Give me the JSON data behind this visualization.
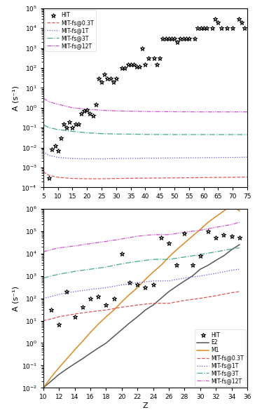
{
  "top_panel": {
    "ylabel": "A (s⁻¹)",
    "xlim": [
      5,
      75
    ],
    "ylim_log": [
      -4,
      5
    ],
    "xticks": [
      5,
      10,
      15,
      20,
      25,
      30,
      35,
      40,
      45,
      50,
      55,
      60,
      65,
      70,
      75
    ],
    "HIT_x": [
      7,
      8,
      9,
      10,
      11,
      12,
      13,
      14,
      15,
      16,
      17,
      18,
      19,
      20,
      21,
      22,
      23,
      24,
      25,
      26,
      27,
      28,
      29,
      30,
      32,
      33,
      34,
      35,
      36,
      37,
      38,
      39,
      40,
      41,
      43,
      44,
      45,
      46,
      47,
      48,
      49,
      50,
      51,
      52,
      53,
      54,
      55,
      57,
      58,
      59,
      60,
      61,
      63,
      64,
      65,
      66,
      68,
      70,
      72,
      73,
      74
    ],
    "HIT_y": [
      0.0003,
      0.008,
      0.012,
      0.007,
      0.03,
      0.15,
      0.1,
      0.2,
      0.1,
      0.15,
      0.15,
      0.5,
      0.7,
      0.8,
      0.5,
      0.4,
      1.5,
      30.0,
      20.0,
      50.0,
      30.0,
      30.0,
      20.0,
      30.0,
      100.0,
      100.0,
      150.0,
      150.0,
      150.0,
      120.0,
      120.0,
      1000.0,
      150.0,
      300.0,
      300.0,
      150.0,
      300.0,
      3000.0,
      3000.0,
      3000.0,
      3000.0,
      3000.0,
      2000.0,
      3000.0,
      3000.0,
      3000.0,
      3000.0,
      3000.0,
      10000.0,
      10000.0,
      10000.0,
      10000.0,
      10000.0,
      30000.0,
      20000.0,
      10000.0,
      10000.0,
      10000.0,
      30000.0,
      20000.0,
      10000.0
    ],
    "MIT03_x": [
      5,
      7,
      10,
      15,
      20,
      25,
      30,
      40,
      50,
      60,
      70,
      75
    ],
    "MIT03_y": [
      0.0006,
      0.0004,
      0.00032,
      0.00028,
      0.00027,
      0.00027,
      0.00028,
      0.00029,
      0.0003,
      0.00031,
      0.00032,
      0.00033
    ],
    "MIT1_x": [
      5,
      7,
      10,
      15,
      20,
      25,
      30,
      40,
      50,
      60,
      70,
      75
    ],
    "MIT1_y": [
      0.006,
      0.004,
      0.0032,
      0.0028,
      0.0027,
      0.0027,
      0.0028,
      0.0029,
      0.003,
      0.0031,
      0.0032,
      0.0033
    ],
    "MIT3_x": [
      5,
      7,
      10,
      15,
      20,
      25,
      30,
      40,
      50,
      60,
      70,
      75
    ],
    "MIT3_y": [
      0.14,
      0.1,
      0.08,
      0.065,
      0.055,
      0.05,
      0.048,
      0.046,
      0.045,
      0.045,
      0.045,
      0.045
    ],
    "MIT12_x": [
      5,
      7,
      10,
      15,
      20,
      25,
      30,
      40,
      50,
      60,
      70,
      75
    ],
    "MIT12_y": [
      3.0,
      2.0,
      1.5,
      1.0,
      0.85,
      0.75,
      0.7,
      0.65,
      0.63,
      0.62,
      0.62,
      0.62
    ],
    "legend_labels": [
      "HIT",
      "MIT-fs@0.3T",
      "MIT-fs@1T",
      "MIT-fs@3T",
      "MIT-fs@12T"
    ],
    "colors": {
      "HIT": "black",
      "MIT03": "#e05555",
      "MIT1": "#5555dd",
      "MIT3": "#44aa88",
      "MIT12": "#cc55cc"
    }
  },
  "bottom_panel": {
    "xlabel": "Z",
    "ylabel": "A (s⁻¹)",
    "xlim": [
      10,
      36
    ],
    "ylim_log": [
      -2,
      6
    ],
    "xticks": [
      10,
      12,
      14,
      16,
      18,
      20,
      22,
      24,
      26,
      28,
      30,
      32,
      34,
      36
    ],
    "HIT_x": [
      11,
      12,
      13,
      14,
      15,
      16,
      17,
      18,
      19,
      20,
      21,
      22,
      23,
      24,
      25,
      26,
      27,
      28,
      29,
      30,
      31,
      32,
      33,
      34,
      35
    ],
    "HIT_y": [
      30.0,
      7,
      200.0,
      15.0,
      40.0,
      100.0,
      120.0,
      50.0,
      100.0,
      10000.0,
      500.0,
      400.0,
      300.0,
      400.0,
      50000.0,
      30000.0,
      3000.0,
      80000.0,
      3000.0,
      8000.0,
      100000.0,
      50000.0,
      70000.0,
      60000.0,
      50000.0
    ],
    "E2_x": [
      10,
      11,
      12,
      13,
      14,
      15,
      16,
      17,
      18,
      19,
      20,
      21,
      22,
      23,
      24,
      25,
      26,
      27,
      28,
      29,
      30,
      31,
      32,
      33,
      34,
      35
    ],
    "E2_y": [
      0.01,
      0.02,
      0.04,
      0.07,
      0.12,
      0.2,
      0.35,
      0.6,
      1.0,
      2.0,
      4.0,
      8.0,
      15.0,
      30.0,
      50.0,
      100.0,
      200.0,
      350.0,
      600.0,
      1000.0,
      2000.0,
      3000.0,
      5000.0,
      8000.0,
      15000.0,
      25000.0
    ],
    "M1_x": [
      10,
      11,
      12,
      13,
      14,
      15,
      16,
      17,
      18,
      19,
      20,
      21,
      22,
      23,
      24,
      25,
      26,
      27,
      28,
      29,
      30,
      31,
      32,
      33,
      34,
      35
    ],
    "M1_y": [
      0.01,
      0.03,
      0.08,
      0.2,
      0.5,
      1.2,
      3.0,
      7.0,
      15.0,
      30.0,
      70.0,
      150.0,
      300.0,
      700.0,
      1500.0,
      3000.0,
      7000.0,
      15000.0,
      30000.0,
      60000.0,
      120000.0,
      250000.0,
      450000.0,
      800000.0,
      1500000.0,
      800000.0
    ],
    "MIT03_x": [
      10,
      11,
      12,
      14,
      16,
      18,
      20,
      22,
      24,
      26,
      28,
      30,
      32,
      34,
      35
    ],
    "MIT03_y": [
      10.0,
      12.0,
      15.0,
      20.0,
      25.0,
      30.0,
      40.0,
      50.0,
      60.0,
      60.0,
      80.0,
      100.0,
      130.0,
      180.0,
      200.0
    ],
    "MIT1_x": [
      10,
      11,
      12,
      14,
      16,
      18,
      20,
      22,
      24,
      26,
      28,
      30,
      32,
      34,
      35
    ],
    "MIT1_y": [
      100.0,
      120.0,
      150.0,
      200.0,
      250.0,
      300.0,
      400.0,
      500.0,
      600.0,
      600.0,
      800.0,
      1000.0,
      1300.0,
      1800.0,
      2000.0
    ],
    "MIT3_x": [
      10,
      11,
      12,
      14,
      16,
      18,
      20,
      22,
      24,
      26,
      28,
      30,
      32,
      34,
      35
    ],
    "MIT3_y": [
      800.0,
      1000.0,
      1200.0,
      1600.0,
      2000.0,
      2500.0,
      3500.0,
      4500.0,
      5500.0,
      5500.0,
      7000.0,
      9000.0,
      12000.0,
      16000.0,
      18000.0
    ],
    "MIT12_x": [
      10,
      11,
      12,
      14,
      16,
      18,
      20,
      22,
      24,
      26,
      28,
      30,
      32,
      34,
      35
    ],
    "MIT12_y": [
      12000.0,
      15000.0,
      18000.0,
      22000.0,
      28000.0,
      35000.0,
      45000.0,
      60000.0,
      70000.0,
      70000.0,
      90000.0,
      110000.0,
      150000.0,
      200000.0,
      250000.0
    ],
    "legend_labels": [
      "HIT",
      "E2",
      "M1",
      "MIT-fs@0.3T",
      "MIT-fs@1T",
      "MIT-fs@3T",
      "MIT-fs@12T"
    ],
    "colors": {
      "HIT": "black",
      "E2": "#555555",
      "M1": "#dd8820",
      "MIT03": "#e05555",
      "MIT1": "#5555dd",
      "MIT3": "#44aa88",
      "MIT12": "#cc55cc"
    }
  }
}
